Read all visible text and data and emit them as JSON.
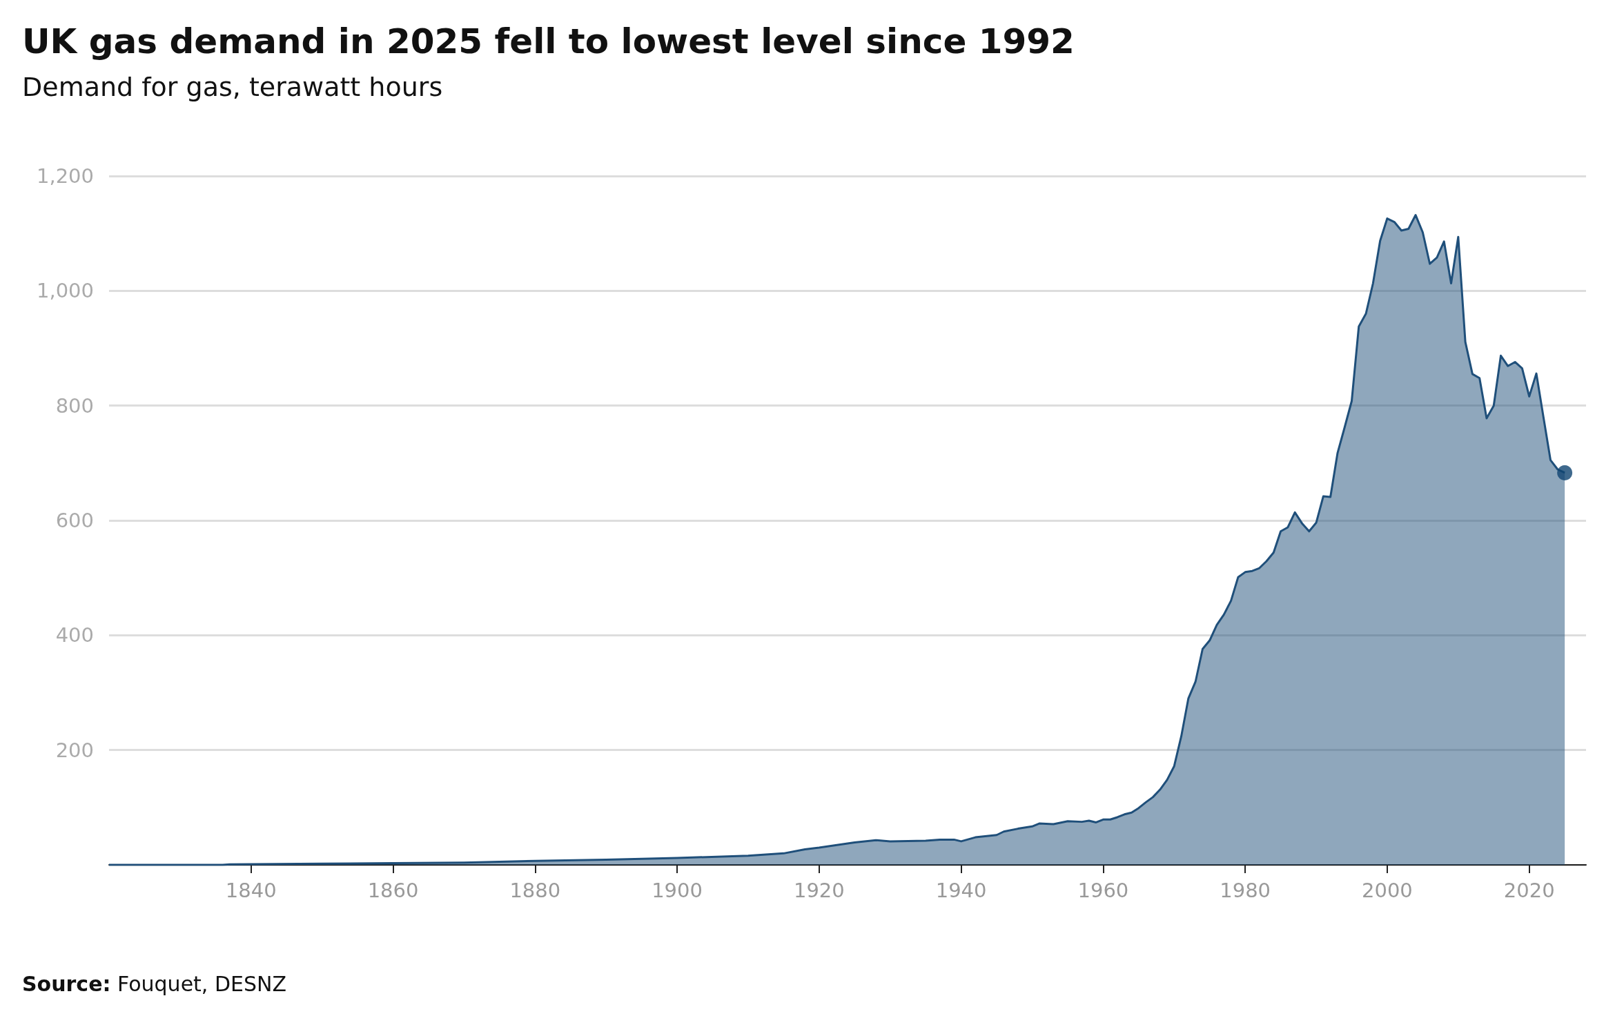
{
  "chart_data": {
    "type": "area",
    "title": "UK gas demand in 2025 fell to lowest level since 1992",
    "subtitle": "Demand for gas, terawatt hours",
    "annotations": [
      "Source: Fouquet, DESNZ"
    ],
    "series": [
      {
        "color": "#1f4f7a",
        "marker": "none",
        "x": [
          1820,
          1836,
          1837,
          1850,
          1860,
          1870,
          1880,
          1890,
          1900,
          1910,
          1915,
          1918,
          1920,
          1925,
          1928,
          1930,
          1935,
          1937,
          1939,
          1940,
          1942,
          1945,
          1946,
          1948,
          1950,
          1951,
          1953,
          1955,
          1957,
          1958,
          1959,
          1960,
          1961,
          1962,
          1963,
          1964,
          1965,
          1966,
          1967,
          1968,
          1969,
          1970,
          1971,
          1972,
          1973,
          1974,
          1975,
          1976,
          1977,
          1978,
          1979,
          1980,
          1981,
          1982,
          1983,
          1984,
          1985,
          1986,
          1987,
          1988,
          1989,
          1990,
          1991,
          1992,
          1993,
          1994,
          1995,
          1996,
          1997,
          1998,
          1999,
          2000,
          2001,
          2002,
          2003,
          2004,
          2005,
          2006,
          2007,
          2008,
          2009,
          2010,
          2011,
          2012,
          2013,
          2014,
          2015,
          2016,
          2017,
          2018,
          2019,
          2020,
          2021,
          2022,
          2023,
          2024,
          2025
        ],
        "values": [
          0,
          0,
          1,
          2,
          3,
          4,
          7,
          9,
          12,
          16,
          20,
          27,
          30,
          39,
          43,
          41,
          42,
          44,
          44,
          41,
          48,
          52,
          58,
          63,
          67,
          72,
          71,
          76,
          75,
          77,
          74,
          79,
          79,
          83,
          88,
          91,
          99,
          109,
          118,
          131,
          148,
          172,
          224,
          290,
          319,
          376,
          391,
          418,
          436,
          460,
          501,
          510,
          512,
          517,
          529,
          544,
          581,
          588,
          614,
          595,
          581,
          596,
          642,
          641,
          717,
          762,
          808,
          938,
          960,
          1013,
          1087,
          1126,
          1120,
          1105,
          1108,
          1132,
          1102,
          1047,
          1058,
          1086,
          1013,
          1094,
          911,
          855,
          848,
          778,
          800,
          887,
          869,
          876,
          865,
          816,
          856,
          780,
          705,
          689,
          683
        ]
      },
      {
        "type": "scatter",
        "color": "#0f4470",
        "marker": "circle",
        "x": [
          2025
        ],
        "values": [
          683
        ]
      }
    ],
    "xlim": [
      1820,
      2028
    ],
    "xticks": [
      1840,
      1860,
      1880,
      1900,
      1920,
      1940,
      1960,
      1980,
      2000,
      2020
    ],
    "ylim": [
      0,
      1200
    ],
    "yticks": [
      {
        "value": 200,
        "label": "200"
      },
      {
        "value": 400,
        "label": "400"
      },
      {
        "value": 600,
        "label": "600"
      },
      {
        "value": 800,
        "label": "800"
      },
      {
        "value": 1000,
        "label": "1,000"
      },
      {
        "value": 1200,
        "label": "1,200"
      }
    ],
    "grid": "y"
  }
}
